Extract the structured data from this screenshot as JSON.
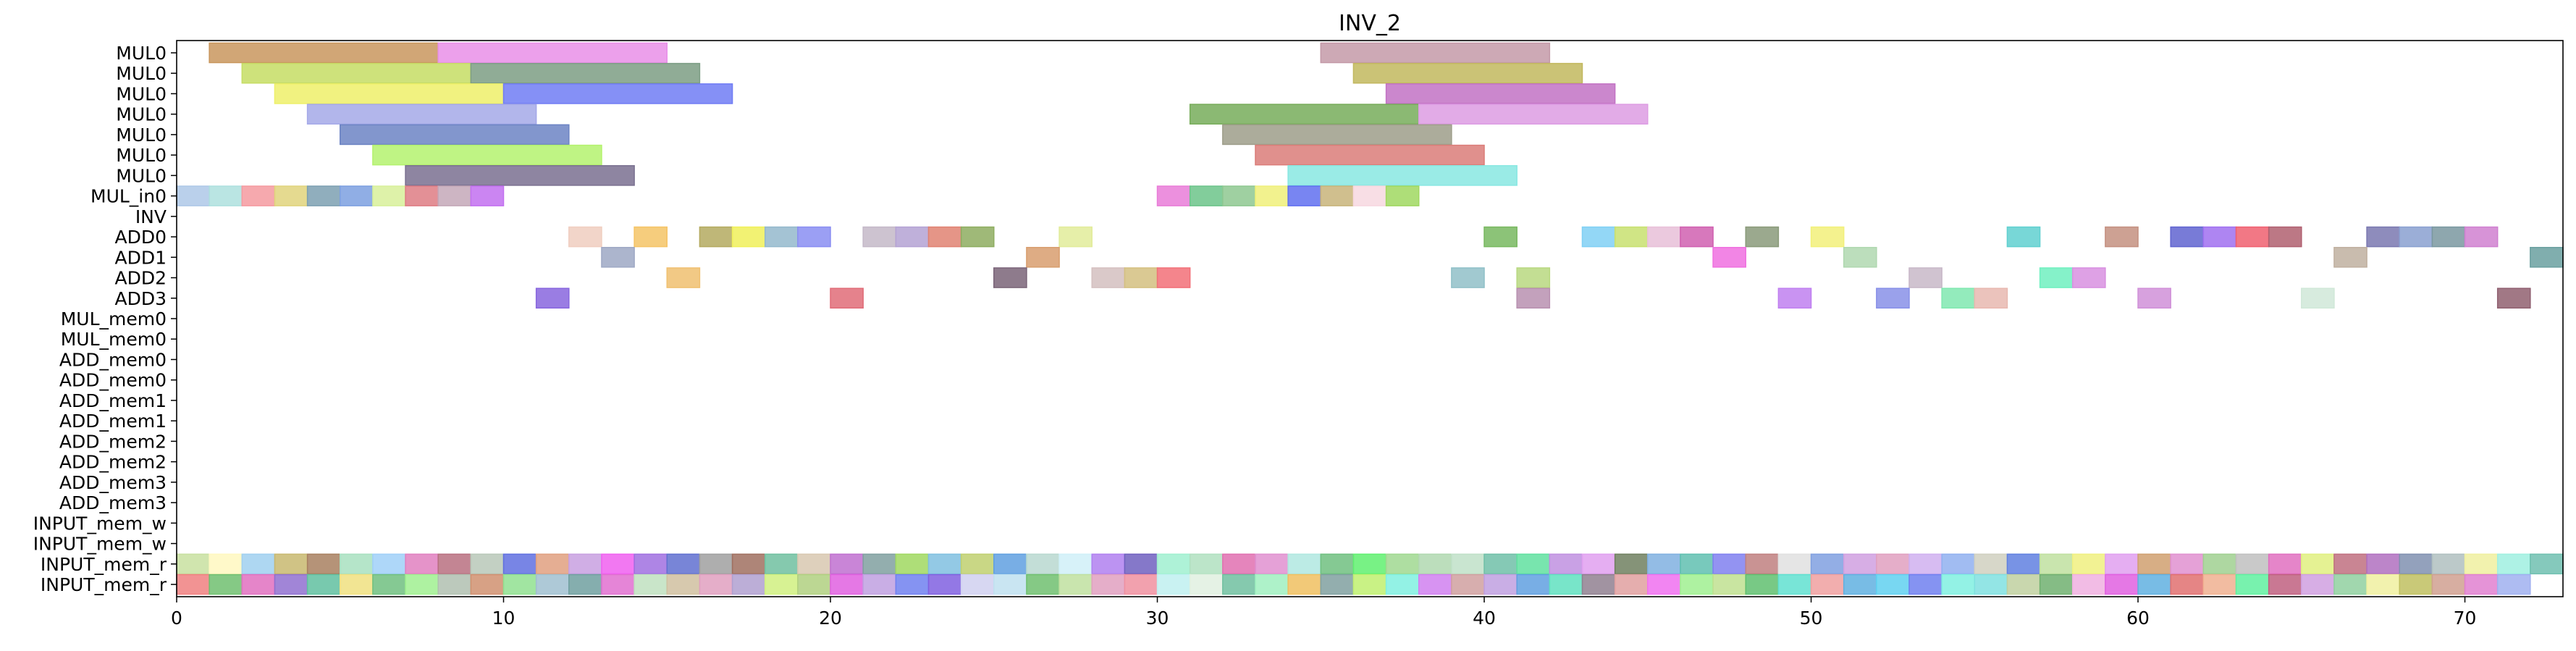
{
  "chart_data": {
    "type": "gantt",
    "title": "INV_2",
    "xlabel": "",
    "ylabel": "",
    "xlim": [
      0,
      73
    ],
    "xticks": [
      0,
      10,
      20,
      30,
      40,
      50,
      60,
      70
    ],
    "grid": false,
    "legend": "none",
    "rows": [
      "MUL0",
      "MUL0",
      "MUL0",
      "MUL0",
      "MUL0",
      "MUL0",
      "MUL0",
      "MUL_in0",
      "INV",
      "ADD0",
      "ADD1",
      "ADD2",
      "ADD3",
      "MUL_mem0",
      "MUL_mem0",
      "ADD_mem0",
      "ADD_mem0",
      "ADD_mem1",
      "ADD_mem1",
      "ADD_mem2",
      "ADD_mem2",
      "ADD_mem3",
      "ADD_mem3",
      "INPUT_mem_w",
      "INPUT_mem_w",
      "INPUT_mem_r",
      "INPUT_mem_r"
    ],
    "colors": [
      "#c9975e",
      "#e98fe8",
      "#c6dd64",
      "#7d9e84",
      "#eef06a",
      "#707cf4",
      "#a5a9e8",
      "#6c84c4",
      "#b4f26e",
      "#7a7090",
      "#77ad5a",
      "#9e9e8a",
      "#c2b85e",
      "#c272c4",
      "#dd9ce3",
      "#db7d79",
      "#88e8e2",
      "#c49aa8",
      "#aec8e8",
      "#aee0de",
      "#f59aa0",
      "#e0d47c",
      "#7da0b2",
      "#7da0e0",
      "#d8f09a",
      "#de7c84",
      "#c4a8b8",
      "#e97cd8",
      "#a9e2f0",
      "#f5c466",
      "#b4aa60",
      "#f0f05a",
      "#94b8cc",
      "#8a8ef2",
      "#c4b8c8",
      "#b4a2d4",
      "#e08272",
      "#8ead60",
      "#e2ec9a",
      "#d89e6e",
      "#f0cec0",
      "#9ea8c4",
      "#7a6478",
      "#d4c8c8",
      "#f27078",
      "#9cc094",
      "#8866de",
      "#e06c78",
      "#f4a0dc",
      "#7ac8e8",
      "#c4b0a2"
    ],
    "bars": [
      {
        "row": 0,
        "start": 1,
        "end": 8,
        "color": "#c9975e"
      },
      {
        "row": 0,
        "start": 8,
        "end": 15,
        "color": "#e98fe8"
      },
      {
        "row": 0,
        "start": 35,
        "end": 42,
        "color": "#c49aa8"
      },
      {
        "row": 1,
        "start": 2,
        "end": 9,
        "color": "#c6dd64"
      },
      {
        "row": 1,
        "start": 9,
        "end": 16,
        "color": "#7d9e84"
      },
      {
        "row": 1,
        "start": 36,
        "end": 43,
        "color": "#c2b85e"
      },
      {
        "row": 2,
        "start": 3,
        "end": 10,
        "color": "#eef06a"
      },
      {
        "row": 2,
        "start": 10,
        "end": 17,
        "color": "#707cf4"
      },
      {
        "row": 2,
        "start": 37,
        "end": 44,
        "color": "#c272c4"
      },
      {
        "row": 3,
        "start": 4,
        "end": 11,
        "color": "#a5a9e8"
      },
      {
        "row": 3,
        "start": 31,
        "end": 38,
        "color": "#77ad5a"
      },
      {
        "row": 3,
        "start": 38,
        "end": 45,
        "color": "#dd9ce3"
      },
      {
        "row": 4,
        "start": 5,
        "end": 12,
        "color": "#6c84c4"
      },
      {
        "row": 4,
        "start": 32,
        "end": 39,
        "color": "#9e9e8a"
      },
      {
        "row": 5,
        "start": 6,
        "end": 13,
        "color": "#b4f26e"
      },
      {
        "row": 5,
        "start": 33,
        "end": 40,
        "color": "#db7d79"
      },
      {
        "row": 6,
        "start": 7,
        "end": 14,
        "color": "#7a7090"
      },
      {
        "row": 6,
        "start": 34,
        "end": 41,
        "color": "#88e8e2"
      },
      {
        "row": 7,
        "start": 0,
        "end": 1,
        "color": "#aec8e8"
      },
      {
        "row": 7,
        "start": 1,
        "end": 2,
        "color": "#aee0de"
      },
      {
        "row": 7,
        "start": 2,
        "end": 3,
        "color": "#f59aa0"
      },
      {
        "row": 7,
        "start": 3,
        "end": 4,
        "color": "#e0d47c"
      },
      {
        "row": 7,
        "start": 4,
        "end": 5,
        "color": "#7da0b2"
      },
      {
        "row": 7,
        "start": 5,
        "end": 6,
        "color": "#7da0e0"
      },
      {
        "row": 7,
        "start": 6,
        "end": 7,
        "color": "#d8f09a"
      },
      {
        "row": 7,
        "start": 7,
        "end": 8,
        "color": "#de7c84"
      },
      {
        "row": 7,
        "start": 8,
        "end": 9,
        "color": "#c4a8b8"
      },
      {
        "row": 7,
        "start": 9,
        "end": 10,
        "color": "#c270f0"
      },
      {
        "row": 7,
        "start": 30,
        "end": 31,
        "color": "#e97cd8"
      },
      {
        "row": 7,
        "start": 31,
        "end": 32,
        "color": "#6cc48a"
      },
      {
        "row": 7,
        "start": 32,
        "end": 33,
        "color": "#8ec890"
      },
      {
        "row": 7,
        "start": 33,
        "end": 34,
        "color": "#f0f07a"
      },
      {
        "row": 7,
        "start": 34,
        "end": 35,
        "color": "#6070f0"
      },
      {
        "row": 7,
        "start": 35,
        "end": 36,
        "color": "#c8b47a"
      },
      {
        "row": 7,
        "start": 36,
        "end": 37,
        "color": "#f7d8e0"
      },
      {
        "row": 7,
        "start": 37,
        "end": 38,
        "color": "#a0d860"
      },
      {
        "row": 9,
        "start": 12,
        "end": 13,
        "color": "#f0cec0"
      },
      {
        "row": 9,
        "start": 14,
        "end": 15,
        "color": "#f5c466"
      },
      {
        "row": 9,
        "start": 16,
        "end": 17,
        "color": "#b4aa60"
      },
      {
        "row": 9,
        "start": 17,
        "end": 18,
        "color": "#f0f05a"
      },
      {
        "row": 9,
        "start": 18,
        "end": 19,
        "color": "#94b8cc"
      },
      {
        "row": 9,
        "start": 19,
        "end": 20,
        "color": "#8a8ef2"
      },
      {
        "row": 9,
        "start": 21,
        "end": 22,
        "color": "#c4b8c8"
      },
      {
        "row": 9,
        "start": 22,
        "end": 23,
        "color": "#b4a2d4"
      },
      {
        "row": 9,
        "start": 23,
        "end": 24,
        "color": "#e08272"
      },
      {
        "row": 9,
        "start": 24,
        "end": 25,
        "color": "#8ead60"
      },
      {
        "row": 9,
        "start": 27,
        "end": 28,
        "color": "#e2ec9a"
      },
      {
        "row": 9,
        "start": 40,
        "end": 41,
        "color": "#78b860"
      },
      {
        "row": 9,
        "start": 43,
        "end": 44,
        "color": "#80d0f4"
      },
      {
        "row": 9,
        "start": 44,
        "end": 45,
        "color": "#c8e070"
      },
      {
        "row": 9,
        "start": 45,
        "end": 46,
        "color": "#e8c0d8"
      },
      {
        "row": 9,
        "start": 46,
        "end": 47,
        "color": "#d060b0"
      },
      {
        "row": 9,
        "start": 48,
        "end": 49,
        "color": "#8a9a7a"
      },
      {
        "row": 9,
        "start": 50,
        "end": 51,
        "color": "#f2f07a"
      },
      {
        "row": 9,
        "start": 56,
        "end": 57,
        "color": "#60d0d0"
      },
      {
        "row": 9,
        "start": 59,
        "end": 60,
        "color": "#c49080"
      },
      {
        "row": 9,
        "start": 61,
        "end": 62,
        "color": "#6064d0"
      },
      {
        "row": 9,
        "start": 62,
        "end": 63,
        "color": "#a070f0"
      },
      {
        "row": 9,
        "start": 63,
        "end": 64,
        "color": "#f06070"
      },
      {
        "row": 9,
        "start": 64,
        "end": 65,
        "color": "#b06070"
      },
      {
        "row": 9,
        "start": 67,
        "end": 68,
        "color": "#7a78b0"
      },
      {
        "row": 9,
        "start": 68,
        "end": 69,
        "color": "#8aa0d0"
      },
      {
        "row": 9,
        "start": 69,
        "end": 70,
        "color": "#7a98a0"
      },
      {
        "row": 9,
        "start": 70,
        "end": 71,
        "color": "#d080d0"
      },
      {
        "row": 10,
        "start": 13,
        "end": 14,
        "color": "#9ea8c4"
      },
      {
        "row": 10,
        "start": 26,
        "end": 27,
        "color": "#d89e6e"
      },
      {
        "row": 10,
        "start": 47,
        "end": 48,
        "color": "#f070e0"
      },
      {
        "row": 10,
        "start": 51,
        "end": 52,
        "color": "#b0d8b0"
      },
      {
        "row": 10,
        "start": 66,
        "end": 67,
        "color": "#c0b0a0"
      },
      {
        "row": 10,
        "start": 72,
        "end": 73,
        "color": "#6aa0a0"
      },
      {
        "row": 11,
        "start": 15,
        "end": 16,
        "color": "#f0c070"
      },
      {
        "row": 11,
        "start": 25,
        "end": 26,
        "color": "#7a6478"
      },
      {
        "row": 11,
        "start": 28,
        "end": 29,
        "color": "#d4c0c0"
      },
      {
        "row": 11,
        "start": 29,
        "end": 30,
        "color": "#d4c080"
      },
      {
        "row": 11,
        "start": 30,
        "end": 31,
        "color": "#f27078"
      },
      {
        "row": 11,
        "start": 39,
        "end": 40,
        "color": "#90c0c8"
      },
      {
        "row": 11,
        "start": 41,
        "end": 42,
        "color": "#b8d880"
      },
      {
        "row": 11,
        "start": 53,
        "end": 54,
        "color": "#c8b8c8"
      },
      {
        "row": 11,
        "start": 57,
        "end": 58,
        "color": "#70f0c0"
      },
      {
        "row": 11,
        "start": 58,
        "end": 59,
        "color": "#d890e0"
      },
      {
        "row": 12,
        "start": 11,
        "end": 12,
        "color": "#8866de"
      },
      {
        "row": 12,
        "start": 20,
        "end": 21,
        "color": "#e06c78"
      },
      {
        "row": 12,
        "start": 41,
        "end": 42,
        "color": "#b890b0"
      },
      {
        "row": 12,
        "start": 49,
        "end": 50,
        "color": "#c080f0"
      },
      {
        "row": 12,
        "start": 52,
        "end": 53,
        "color": "#8890e8"
      },
      {
        "row": 12,
        "start": 54,
        "end": 55,
        "color": "#80e8b0"
      },
      {
        "row": 12,
        "start": 55,
        "end": 56,
        "color": "#e8b8b0"
      },
      {
        "row": 12,
        "start": 60,
        "end": 61,
        "color": "#d090d8"
      },
      {
        "row": 12,
        "start": 65,
        "end": 66,
        "color": "#d0e8d8"
      },
      {
        "row": 12,
        "start": 71,
        "end": 72,
        "color": "#906070"
      }
    ],
    "input_row_w_colors": [
      "#c8e0a0",
      "#fff8c0",
      "#a0d0f0",
      "#c8b870",
      "#a88060",
      "#a8e0c0",
      "#a0d0f8",
      "#e080c0",
      "#b87080",
      "#b8c8b8",
      "#6070e0",
      "#e0a080",
      "#c8a0e0",
      "#f060f0",
      "#a070e0",
      "#6070d0",
      "#a0a0a0",
      "#a07060",
      "#70c0a0",
      "#d8c8b0",
      "#c070d0",
      "#80a0a0",
      "#a0d860",
      "#80c0e0",
      "#c0d070",
      "#60a0e0",
      "#b8d8d0",
      "#d0f0f8",
      "#b080f0",
      "#7060c0",
      "#a0f0d0",
      "#b0e0c0",
      "#e070b0",
      "#e090d0",
      "#b0e8e0",
      "#70c080",
      "#60f070",
      "#a0d890",
      "#b0d8b0",
      "#c0e0c8",
      "#70c0a8",
      "#60e0a0",
      "#c090e0",
      "#e0a0f0",
      "#708060",
      "#80b0e0",
      "#60c0b0",
      "#8080f0",
      "#c08080",
      "#e0e0e0",
      "#80a0e0",
      "#d0a0e0",
      "#e0a0c0",
      "#d0b0f0",
      "#90b0f0",
      "#d0d0c0",
      "#6080e0",
      "#c0e0a0",
      "#f0f080",
      "#e0a0f0",
      "#d0a070",
      "#e090d0",
      "#a0d090",
      "#c0c0c0",
      "#e070c0",
      "#e0f080",
      "#c07080",
      "#b070c0",
      "#8090b0",
      "#b0c0c0",
      "#f0f0a0",
      "#a0f0e0",
      "#70c0b0",
      "#f060f0",
      "#f06090",
      "#f060e0"
    ],
    "input_row_r_colors": [
      "#f08080",
      "#70c070",
      "#e070c0",
      "#9070d0",
      "#60c0a0",
      "#f0e080",
      "#70c080",
      "#a0f090",
      "#b0c0b0",
      "#d09070",
      "#90e090",
      "#a0c0d0",
      "#70a0a0",
      "#e070d0",
      "#c0e0c0",
      "#d0c0a0",
      "#e0a0c0",
      "#b0a0d0",
      "#d0f080",
      "#b0d080",
      "#e060e0",
      "#c0a0e0",
      "#7080f0",
      "#8060e0",
      "#d0d0f0",
      "#c0e0f0",
      "#70c070",
      "#c0e0a0",
      "#e0a0c0",
      "#f090a0",
      "#c0f0f0",
      "#e0f0e0",
      "#70c0a0",
      "#a0f0c0",
      "#f0c060",
      "#80a0a0",
      "#c0f070",
      "#80f0e0",
      "#d080f0",
      "#d0a0a0",
      "#c0a0e0",
      "#60a0e0",
      "#60e0c0",
      "#908090",
      "#e0a0a0",
      "#f070f0",
      "#a0f090",
      "#c0e090",
      "#60c070",
      "#60e0d0",
      "#f0a0a0",
      "#60b0e0",
      "#60d0f0",
      "#7080f0",
      "#80f0e0",
      "#80e0e0",
      "#c0d0a0",
      "#70b070",
      "#f0b0e0",
      "#e060e0",
      "#60b0e0",
      "#e07070",
      "#f0b090",
      "#60f0a0",
      "#c06080",
      "#d0a0e0",
      "#90d0a0",
      "#f0f0a0",
      "#c0c060",
      "#d0a090",
      "#e080d0",
      "#a0b0f0"
    ]
  }
}
